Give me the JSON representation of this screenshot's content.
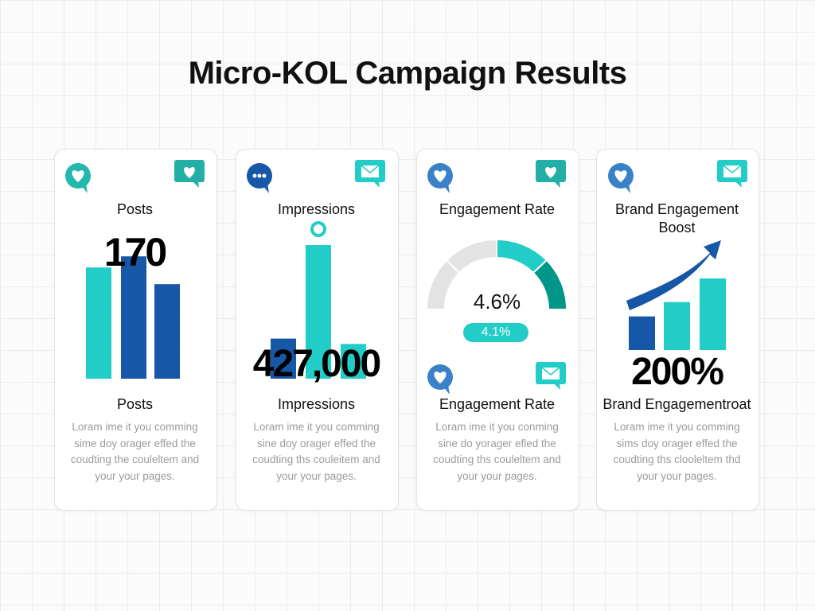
{
  "title": "Micro-KOL Campaign Results",
  "colors": {
    "teal": "#22cdc7",
    "blue": "#1757a8",
    "dark_teal": "#00968a",
    "gray_track": "#e3e3e3"
  },
  "cards": [
    {
      "title": "Posts",
      "value": "170",
      "label": "Posts",
      "icons": [
        "heart-chat-icon",
        "heart-message-icon"
      ],
      "bars": [
        {
          "color": "teal",
          "level": 0.6
        },
        {
          "color": "blue",
          "level": 0.66
        },
        {
          "color": "blue",
          "level": 0.51
        }
      ],
      "desc": [
        "Loram ime it you comming",
        "sime doy orager effed the",
        "coudting the couleltem and",
        "your your pages."
      ]
    },
    {
      "title": "Impressions",
      "value": "427,000",
      "label": "Impressions",
      "icons": [
        "ellipsis-chat-icon",
        "mail-message-icon"
      ],
      "bars": [
        {
          "color": "blue",
          "level": 0.3
        },
        {
          "color": "teal",
          "level": 1.0
        },
        {
          "color": "teal",
          "level": 0.26
        }
      ],
      "desc": [
        "Loram ime it you comming",
        "sine doy orager effed the",
        "coudting ths couleitem and",
        "your your pages."
      ]
    },
    {
      "title": "Engagement Rate",
      "value": "4.6%",
      "badge": "4.1%",
      "label": "Engagement Rate",
      "icons": [
        "heart-chat-icon",
        "heart-message-icon",
        "heart-chat-icon",
        "mail-message-icon"
      ],
      "desc": [
        "Loram ime it you conming",
        "sine do yorager efled the",
        "coudting ths couleltem and",
        "your your pages."
      ]
    },
    {
      "title": "Brand Engagement",
      "title2": "Boost",
      "value": "200%",
      "label": "Brand Engagementroat",
      "icons": [
        "heart-chat-icon",
        "mail-message-icon"
      ],
      "bars": [
        {
          "color": "blue",
          "level": 0.47
        },
        {
          "color": "teal",
          "level": 0.67
        },
        {
          "color": "teal",
          "level": 1.0
        }
      ],
      "desc": [
        "Loram ime it you comming",
        "sims doy orager effed the",
        "coudting ths clooleltem thd",
        "your your pages."
      ]
    }
  ]
}
